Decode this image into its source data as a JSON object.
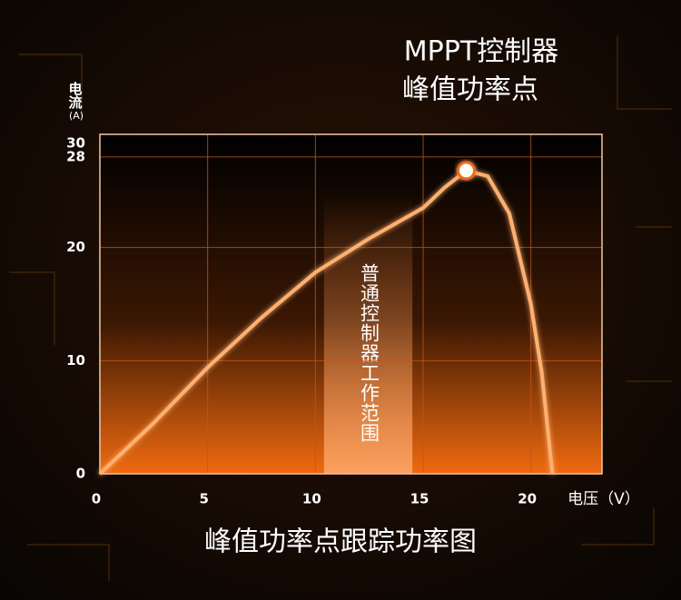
{
  "chart_data": {
    "type": "line",
    "title": "MPPT控制器",
    "subtitle": "峰值功率点",
    "caption": "峰值功率点跟踪功率图",
    "y_label": "电流",
    "y_unit": "(A)",
    "x_label": "电压（V）",
    "x": [
      0,
      2.5,
      5,
      7.5,
      10,
      12.5,
      15,
      16,
      17,
      18,
      19,
      20,
      20.5,
      21
    ],
    "series": [
      {
        "color": "#ffb070",
        "values": [
          0,
          4.5,
          9.4,
          13.8,
          17.8,
          20.8,
          23.5,
          25.3,
          26.8,
          26.3,
          23,
          15,
          9,
          0
        ]
      }
    ],
    "peak": {
      "x": 17,
      "y": 26.8
    },
    "band": {
      "label": "普通控制器工作范围",
      "range": [
        10.4,
        14.5
      ]
    },
    "xlim": [
      0,
      23.3
    ],
    "xticks": [
      0,
      5,
      10,
      15,
      20
    ],
    "ylim": [
      0,
      30
    ],
    "yticks": [
      0,
      10,
      20,
      28,
      30
    ],
    "grid": true
  }
}
